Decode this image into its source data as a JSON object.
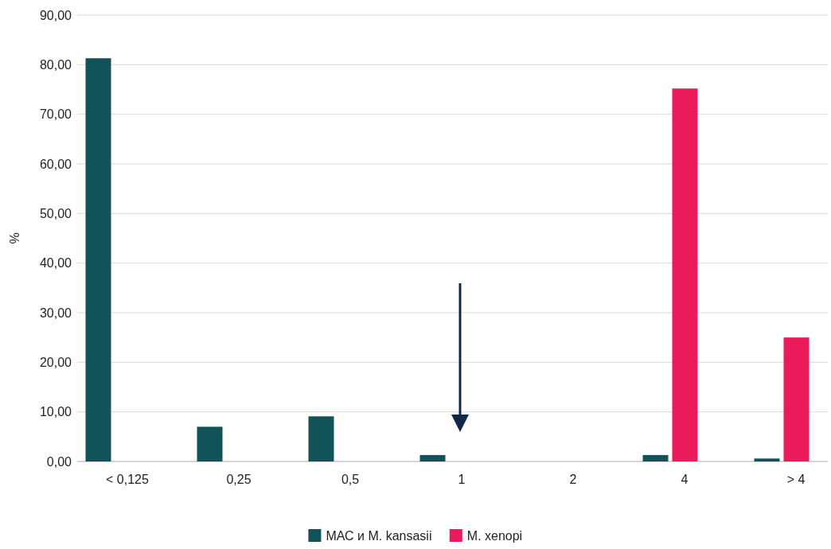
{
  "chart_data": {
    "type": "bar",
    "ylabel": "%",
    "categories": [
      "< 0,125",
      "0,25",
      "0,5",
      "1",
      "2",
      "4",
      "> 4"
    ],
    "series": [
      {
        "name": "МАС и M. kansasii",
        "color": "#12535a",
        "values": [
          81.3,
          7.0,
          9.1,
          1.3,
          null,
          1.3,
          0.6
        ]
      },
      {
        "name": "M. xenopi",
        "color": "#eb1a5a",
        "values": [
          null,
          null,
          null,
          null,
          null,
          75.2,
          25.0
        ]
      }
    ],
    "ylim": [
      0,
      90
    ],
    "yticks": [
      {
        "value": 0,
        "label": "0,00"
      },
      {
        "value": 10,
        "label": "10,00"
      },
      {
        "value": 20,
        "label": "20,00"
      },
      {
        "value": 30,
        "label": "30,00"
      },
      {
        "value": 40,
        "label": "40,00"
      },
      {
        "value": 50,
        "label": "50,00"
      },
      {
        "value": 60,
        "label": "60,00"
      },
      {
        "value": 70,
        "label": "70,00"
      },
      {
        "value": 80,
        "label": "80,00"
      },
      {
        "value": 90,
        "label": "90,00"
      }
    ],
    "grid": "y",
    "legend": "bottom"
  }
}
